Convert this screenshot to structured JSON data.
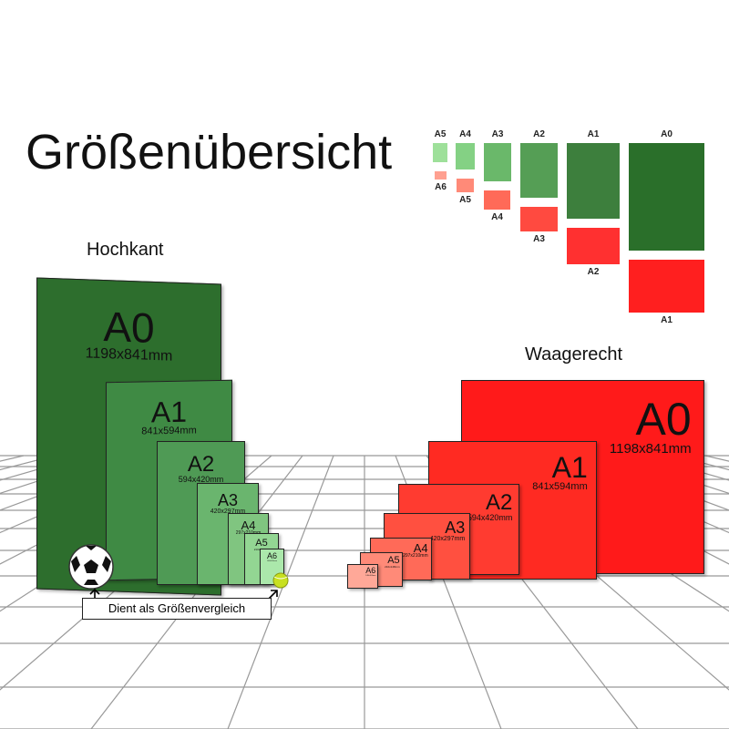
{
  "title": "Größenübersicht",
  "portrait": {
    "label": "Hochkant",
    "sheets": [
      {
        "name": "A0",
        "dims": "1198x841mm",
        "color": "#2d6e2d"
      },
      {
        "name": "A1",
        "dims": "841x594mm",
        "color": "#3f8a44"
      },
      {
        "name": "A2",
        "dims": "594x420mm",
        "color": "#4f9a55"
      },
      {
        "name": "A3",
        "dims": "420x297mm",
        "color": "#6ab56e"
      },
      {
        "name": "A4",
        "dims": "297x210mm",
        "color": "#80c580"
      },
      {
        "name": "A5",
        "dims": "210x148mm",
        "color": "#93d693"
      },
      {
        "name": "A6",
        "dims": "148x105mm",
        "color": "#abe8ab"
      }
    ]
  },
  "landscape": {
    "label": "Waagerecht",
    "sheets": [
      {
        "name": "A0",
        "dims": "1198x841mm",
        "color": "#ff1a1a"
      },
      {
        "name": "A1",
        "dims": "841x594mm",
        "color": "#ff2a22"
      },
      {
        "name": "A2",
        "dims": "594x420mm",
        "color": "#ff3b30"
      },
      {
        "name": "A3",
        "dims": "420x297mm",
        "color": "#ff5040"
      },
      {
        "name": "A4",
        "dims": "297x210mm",
        "color": "#ff6a58"
      },
      {
        "name": "A5",
        "dims": "210x148mm",
        "color": "#ff8a78"
      },
      {
        "name": "A6",
        "dims": "148x105mm",
        "color": "#ffa898"
      }
    ]
  },
  "legend": {
    "green": [
      {
        "name": "A5",
        "color": "#9ee09a"
      },
      {
        "name": "A4",
        "color": "#84d184"
      },
      {
        "name": "A3",
        "color": "#6ab86a"
      },
      {
        "name": "A2",
        "color": "#559e55"
      },
      {
        "name": "A1",
        "color": "#3d7f3d"
      },
      {
        "name": "A0",
        "color": "#2a6f2a"
      }
    ],
    "red": [
      {
        "name": "A6",
        "color": "#ffa090"
      },
      {
        "name": "A5",
        "color": "#ff8a78"
      },
      {
        "name": "A4",
        "color": "#ff6a58"
      },
      {
        "name": "A3",
        "color": "#ff4a40"
      },
      {
        "name": "A2",
        "color": "#ff3030"
      },
      {
        "name": "A1",
        "color": "#ff1f1f"
      }
    ]
  },
  "caption": "Dient als Größenvergleich",
  "icons": [
    "soccer-ball-icon",
    "tennis-ball-icon",
    "arrow-icon"
  ]
}
